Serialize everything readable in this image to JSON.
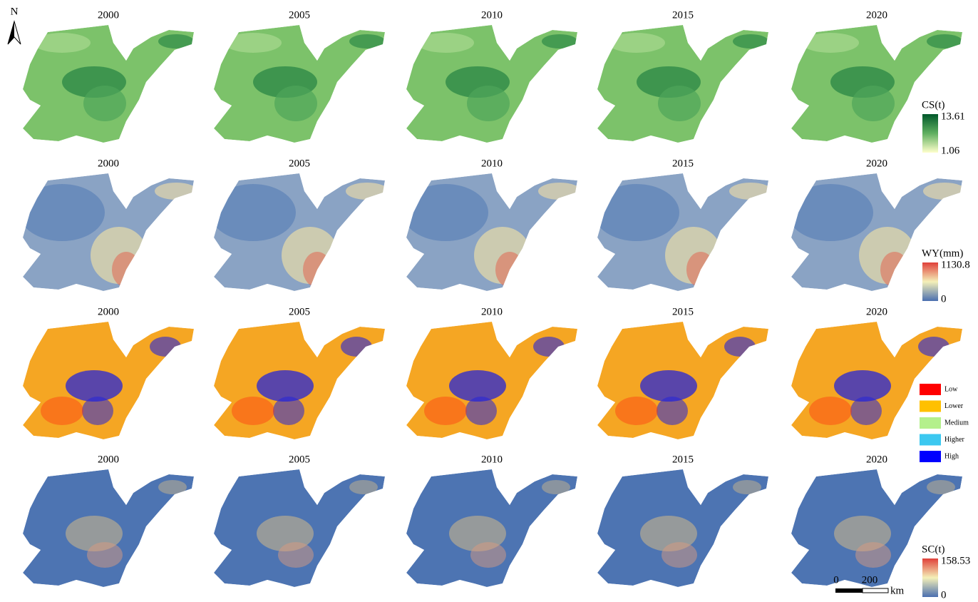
{
  "north": "N",
  "rows": [
    {
      "years": [
        "2000",
        "2005",
        "2010",
        "2015",
        "2020"
      ],
      "legend": {
        "title": "CS(t)",
        "max": 13.61,
        "min": 1.06
      }
    },
    {
      "years": [
        "2000",
        "2005",
        "2010",
        "2015",
        "2020"
      ],
      "legend": {
        "title": "WY(mm)",
        "max": 1130.8,
        "min": 0
      }
    },
    {
      "years": [
        "2000",
        "2005",
        "2010",
        "2015",
        "2020"
      ]
    },
    {
      "years": [
        "2000",
        "2005",
        "2010",
        "2015",
        "2020"
      ],
      "legend": {
        "title": "SC(t)",
        "max": 158.53,
        "min": 0
      }
    }
  ],
  "class_legend": [
    {
      "label": "Low",
      "color": "#ff0000"
    },
    {
      "label": "Lower",
      "color": "#ffc000"
    },
    {
      "label": "Medium",
      "color": "#b4f08c"
    },
    {
      "label": "Higher",
      "color": "#3cc8f0"
    },
    {
      "label": "High",
      "color": "#0000ff"
    }
  ],
  "scale_bar": {
    "ticks": [
      "0",
      "200"
    ],
    "unit": "km"
  }
}
